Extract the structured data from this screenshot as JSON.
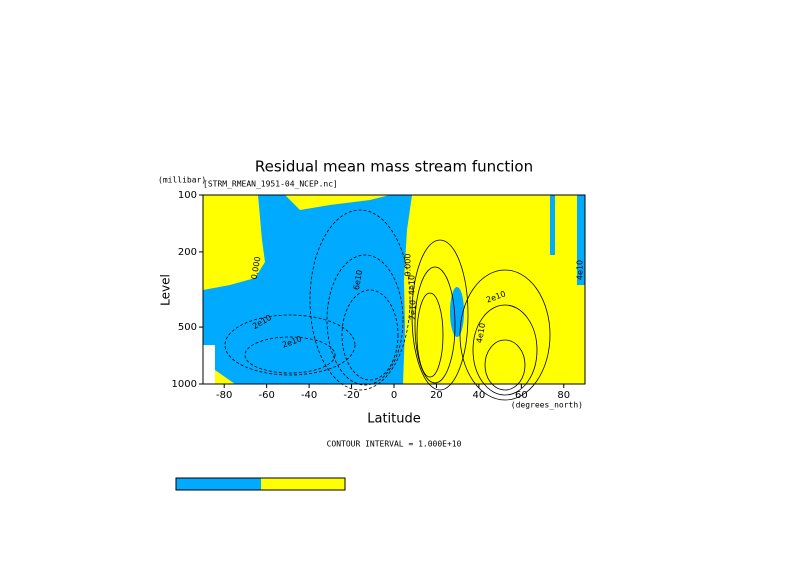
{
  "chart_data": {
    "type": "contour",
    "title": "Residual mean mass stream function",
    "subtitle": "[STRM_RMEAN_1951-04_NCEP.nc]",
    "y_unit": "(millibar)",
    "y_label": "Level",
    "x_label": "Latitude",
    "x_unit": "(degrees_north)",
    "footnote": "CONTOUR INTERVAL = 1.000E+10",
    "xlim": [
      -90,
      90
    ],
    "xticks": [
      -80,
      -60,
      -40,
      -20,
      0,
      20,
      40,
      60,
      80
    ],
    "ylim": [
      1000,
      100
    ],
    "yticks": [
      100,
      200,
      500,
      1000
    ],
    "yscale": "log",
    "colors": [
      "#00aaff",
      "#ffff00"
    ],
    "contour_labels": [
      "0.000",
      "6e10",
      "2e10",
      "4e10",
      "2e10",
      "2e10",
      "4e10",
      "0.000",
      "4e10",
      "2e10"
    ]
  }
}
